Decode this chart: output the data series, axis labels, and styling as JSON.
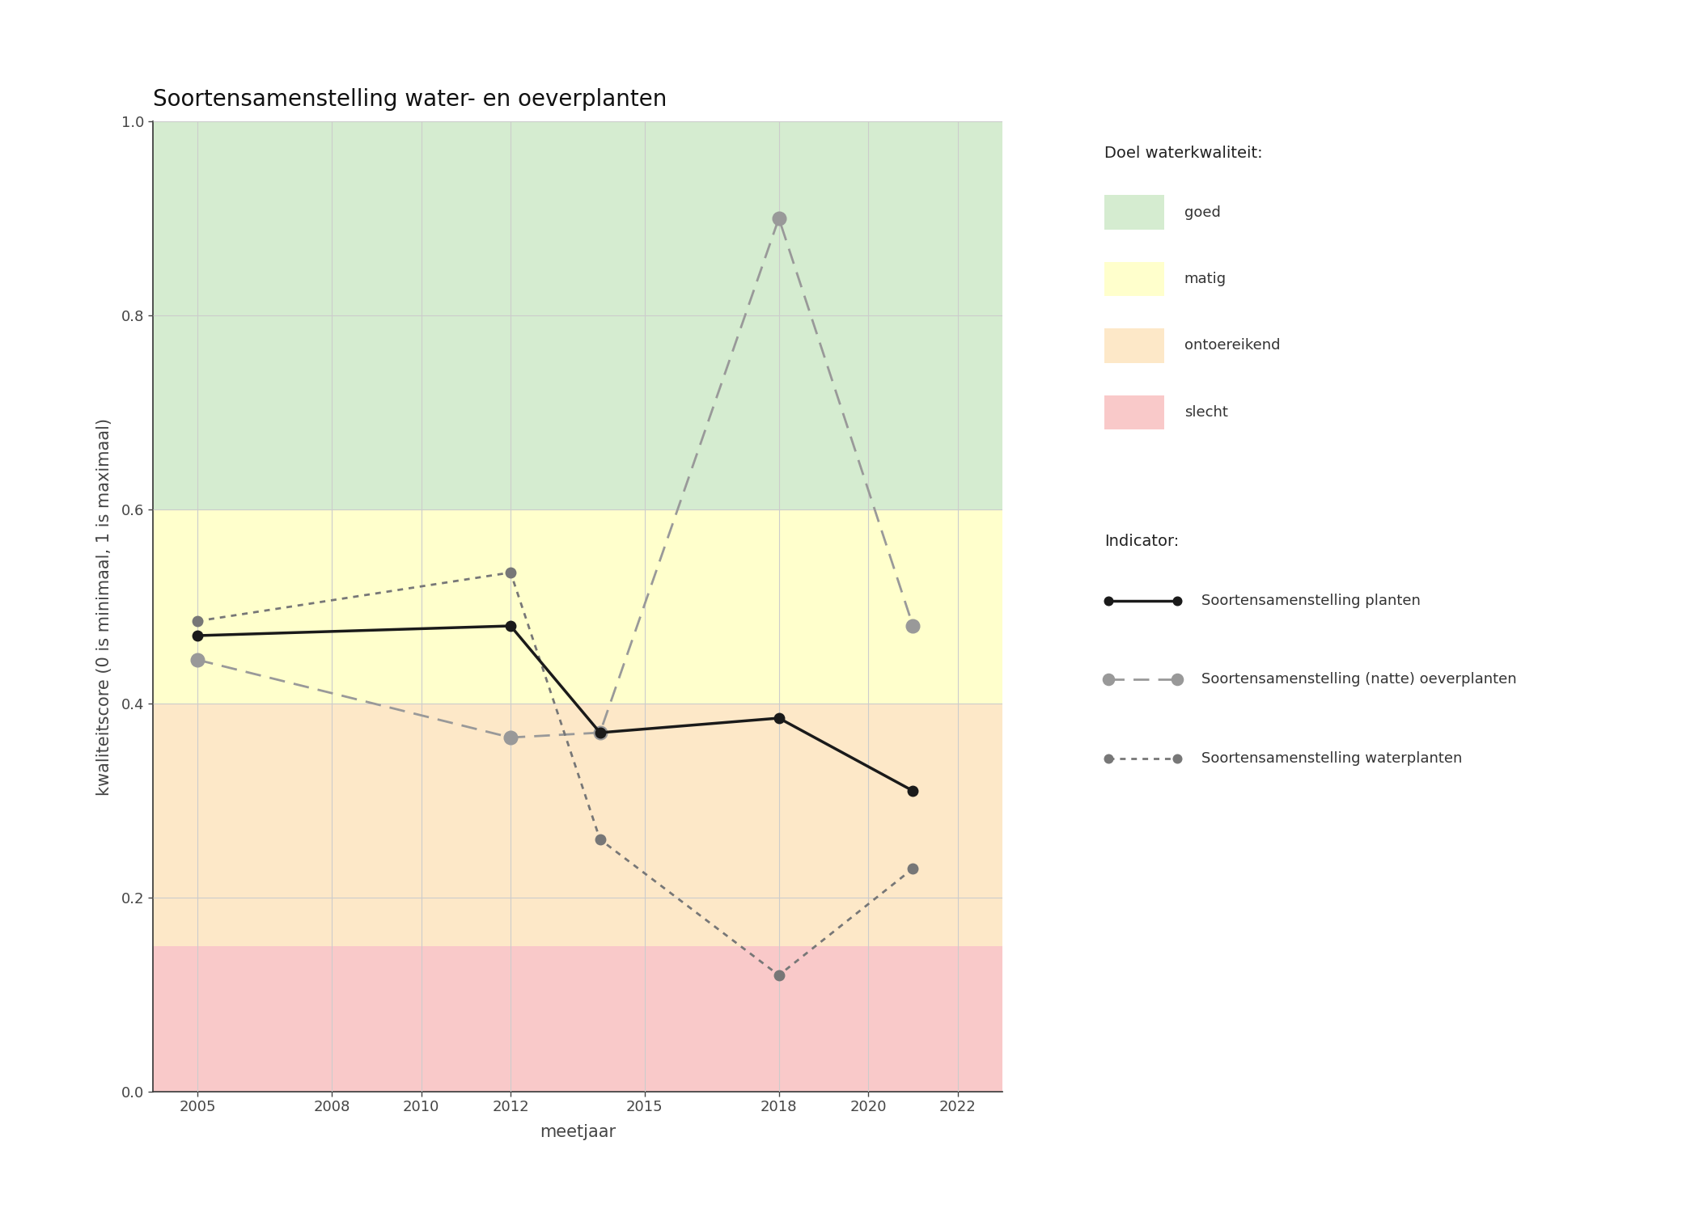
{
  "title": "Soortensamenstelling water- en oeverplanten",
  "xlabel": "meetjaar",
  "ylabel": "kwaliteitscore (0 is minimaal, 1 is maximaal)",
  "xlim": [
    2004,
    2023
  ],
  "ylim": [
    0.0,
    1.0
  ],
  "xticks": [
    2005,
    2008,
    2010,
    2012,
    2015,
    2018,
    2020,
    2022
  ],
  "yticks": [
    0.0,
    0.2,
    0.4,
    0.6,
    0.8,
    1.0
  ],
  "bg_bands": [
    {
      "ymin": 0.6,
      "ymax": 1.0,
      "color": "#d5ecd0",
      "label": "goed"
    },
    {
      "ymin": 0.4,
      "ymax": 0.6,
      "color": "#ffffcc",
      "label": "matig"
    },
    {
      "ymin": 0.15,
      "ymax": 0.4,
      "color": "#fde8c8",
      "label": "ontoereikend"
    },
    {
      "ymin": 0.0,
      "ymax": 0.15,
      "color": "#f9c9c9",
      "label": "slecht"
    }
  ],
  "series": [
    {
      "key": "planten",
      "x": [
        2005,
        2012,
        2014,
        2018,
        2021
      ],
      "y": [
        0.47,
        0.48,
        0.37,
        0.385,
        0.31
      ],
      "color": "#1a1a1a",
      "linestyle": "solid",
      "marker": "o",
      "markersize": 9,
      "linewidth": 2.5,
      "label": "Soortensamenstelling planten",
      "zorder": 5
    },
    {
      "key": "oeverplanten",
      "x": [
        2005,
        2012,
        2014,
        2018,
        2021
      ],
      "y": [
        0.445,
        0.365,
        0.37,
        0.9,
        0.48
      ],
      "color": "#999999",
      "linestyle": "dashed",
      "marker": "o",
      "markersize": 12,
      "linewidth": 2.0,
      "label": "Soortensamenstelling (natte) oeverplanten",
      "zorder": 4
    },
    {
      "key": "waterplanten",
      "x": [
        2005,
        2012,
        2014,
        2018,
        2021
      ],
      "y": [
        0.485,
        0.535,
        0.26,
        0.12,
        0.23
      ],
      "color": "#777777",
      "linestyle": "dotted",
      "marker": "o",
      "markersize": 9,
      "linewidth": 2.0,
      "label": "Soortensamenstelling waterplanten",
      "zorder": 4
    }
  ],
  "legend_quality_title": "Doel waterkwaliteit:",
  "legend_indicator_title": "Indicator:",
  "bg_figure": "#ffffff",
  "grid_color": "#cccccc",
  "title_fontsize": 20,
  "axis_label_fontsize": 15,
  "tick_fontsize": 13,
  "legend_fontsize": 13
}
